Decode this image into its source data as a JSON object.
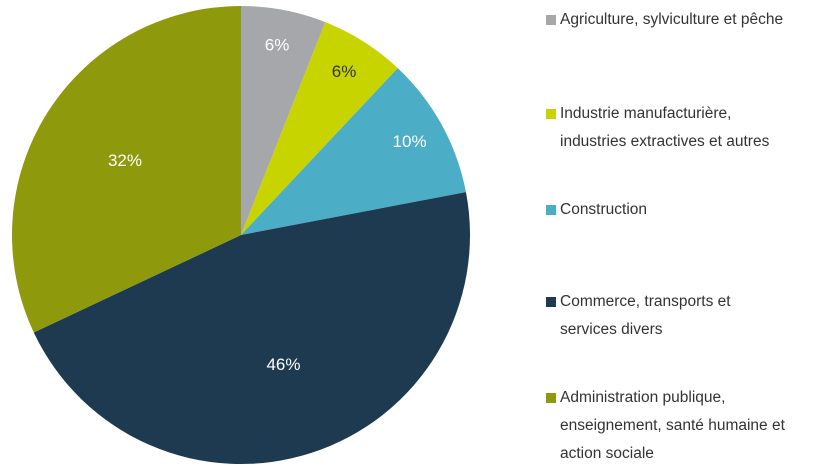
{
  "chart_data": {
    "type": "pie",
    "categories": [
      "Agriculture, sylviculture et pêche",
      "Industrie manufacturière,\nindustries extractives et autres",
      "Construction",
      "Commerce, transports et\nservices divers",
      "Administration publique,\nenseignement, santé humaine et\naction sociale"
    ],
    "values": [
      6,
      6,
      10,
      46,
      32
    ],
    "value_labels": [
      "6%",
      "6%",
      "10%",
      "46%",
      "32%"
    ],
    "colors": [
      "#a5a7ab",
      "#c8d400",
      "#4badc6",
      "#1e3a51",
      "#8f990c"
    ],
    "legend": "right"
  }
}
